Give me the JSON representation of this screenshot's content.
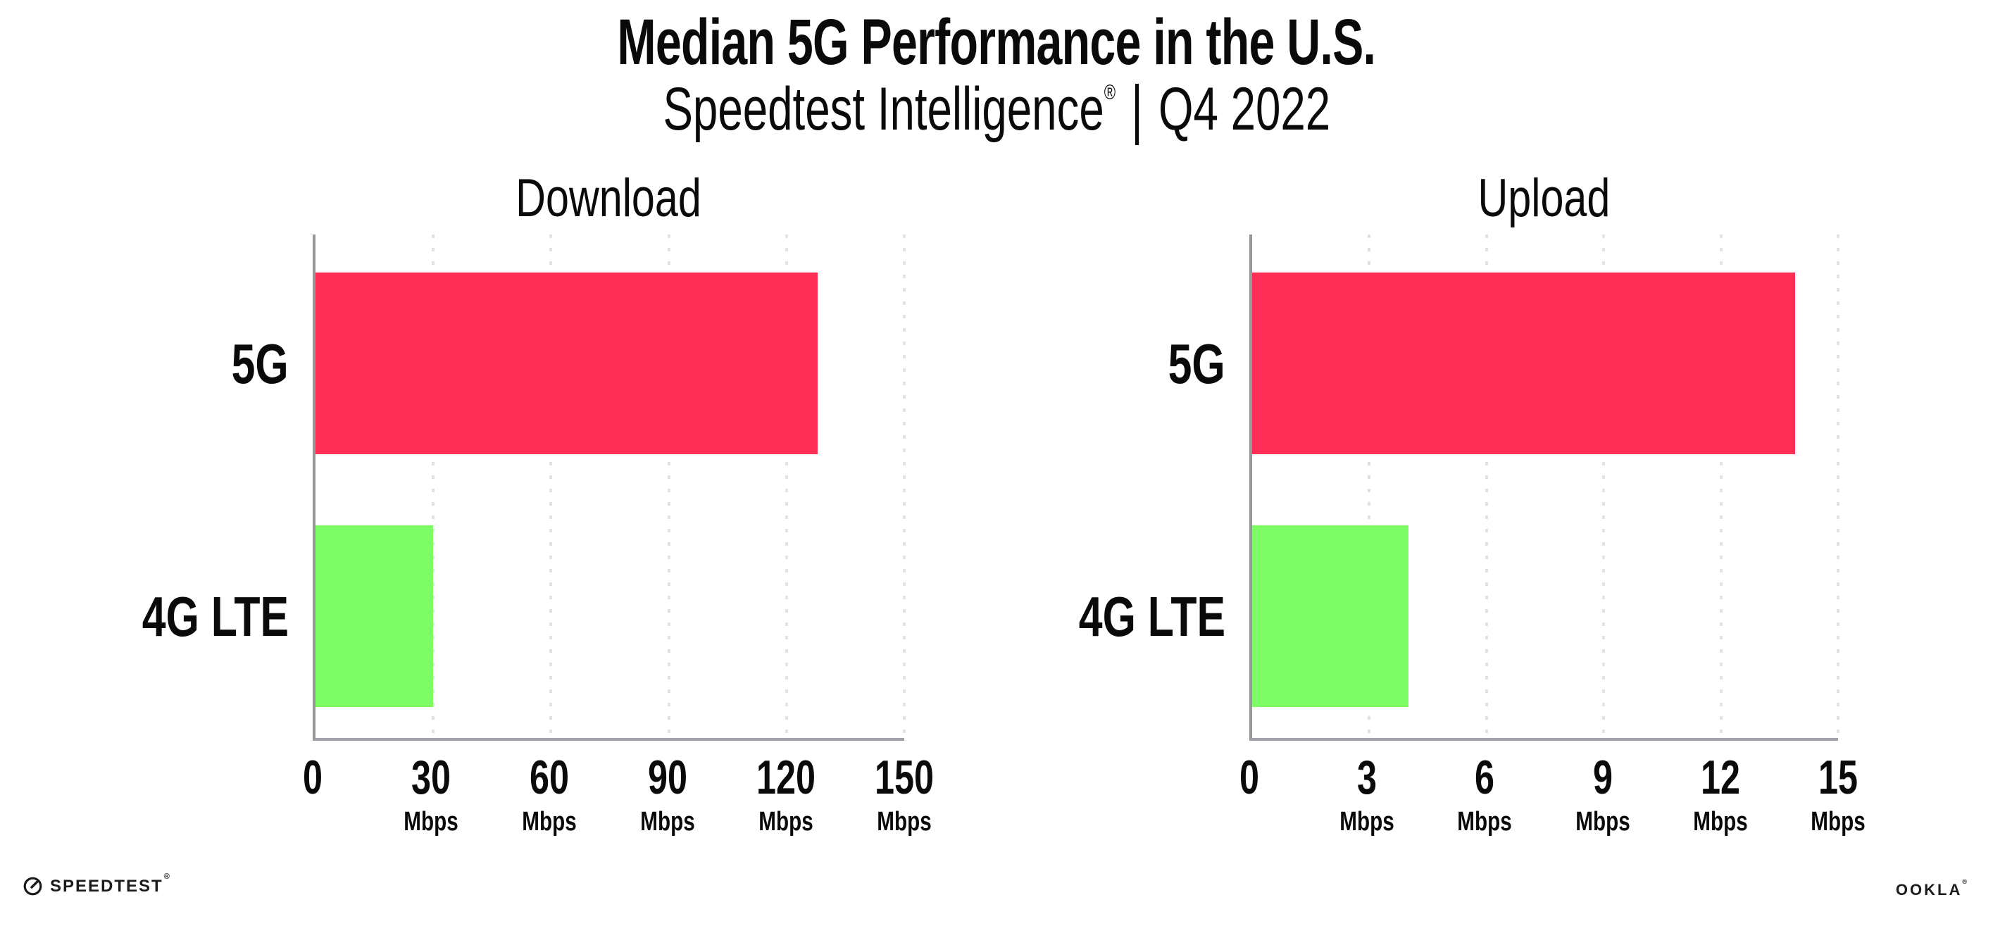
{
  "page": {
    "title": "Median 5G Performance in the U.S.",
    "subtitle_brand": "Speedtest Intelligence",
    "subtitle_reg": "®",
    "subtitle_sep": "|",
    "subtitle_period": "Q4 2022"
  },
  "chart_data": [
    {
      "type": "bar",
      "orientation": "horizontal",
      "title": "Download",
      "categories": [
        "5G",
        "4G LTE"
      ],
      "values": [
        128,
        30
      ],
      "unit": "Mbps",
      "xlim": [
        0,
        150
      ],
      "xticks": [
        0,
        30,
        60,
        90,
        120,
        150
      ],
      "tick_unit_label": "Mbps",
      "bar_colors": [
        "#FE2E56",
        "#7EFC66"
      ],
      "grid": "dotted-vertical",
      "legend": "none"
    },
    {
      "type": "bar",
      "orientation": "horizontal",
      "title": "Upload",
      "categories": [
        "5G",
        "4G LTE"
      ],
      "values": [
        13.9,
        4
      ],
      "unit": "Mbps",
      "xlim": [
        0,
        15
      ],
      "xticks": [
        0,
        3,
        6,
        9,
        12,
        15
      ],
      "tick_unit_label": "Mbps",
      "bar_colors": [
        "#FE2E56",
        "#7EFC66"
      ],
      "grid": "dotted-vertical",
      "legend": "none"
    }
  ],
  "footer": {
    "speedtest_text": "SPEEDTEST",
    "speedtest_reg": "®",
    "ookla_text": "OOKLA",
    "ookla_reg": "®"
  },
  "colors": {
    "bar_5g": "#FE2E56",
    "bar_4g_lte": "#7EFC66",
    "axis": "#96969D",
    "grid_dots": "#E1E1EA",
    "text": "#0A0A0A",
    "background": "#FFFFFF"
  }
}
